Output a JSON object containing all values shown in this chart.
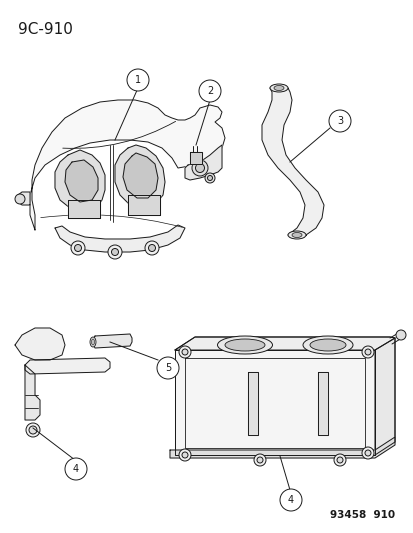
{
  "title": "9C-910",
  "footer": "93458  910",
  "bg": "#ffffff",
  "lc": "#1a1a1a",
  "lw": 0.7,
  "title_fs": 11,
  "footer_fs": 7.5,
  "label_fs": 7,
  "label_r": 0.022
}
